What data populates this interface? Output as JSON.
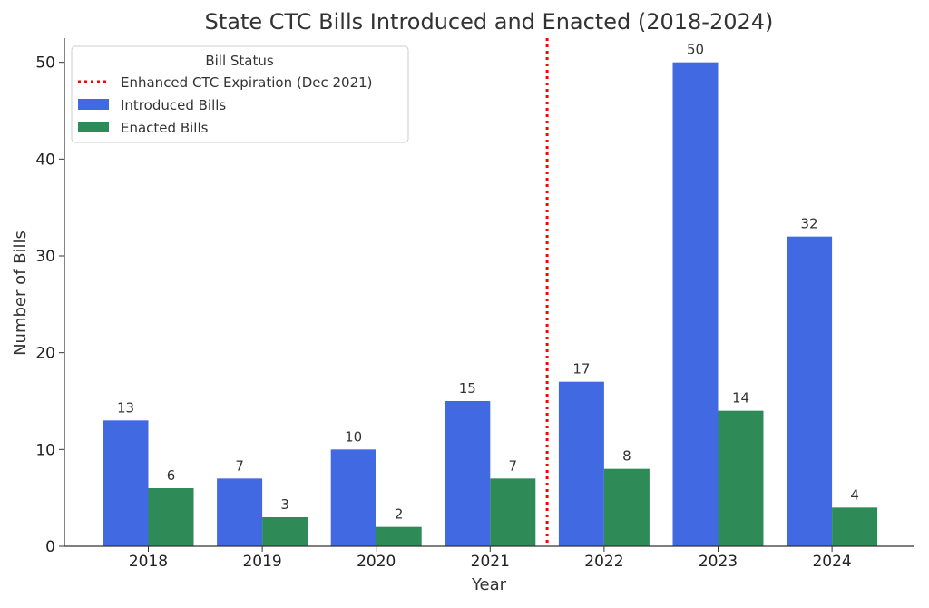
{
  "chart_data": {
    "type": "bar",
    "title": "State CTC Bills Introduced and Enacted (2018-2024)",
    "xlabel": "Year",
    "ylabel": "Number of Bills",
    "categories": [
      "2018",
      "2019",
      "2020",
      "2021",
      "2022",
      "2023",
      "2024"
    ],
    "series": [
      {
        "name": "Introduced Bills",
        "color": "#4169E1",
        "values": [
          13,
          7,
          10,
          15,
          17,
          50,
          32
        ]
      },
      {
        "name": "Enacted Bills",
        "color": "#2E8B57",
        "values": [
          6,
          3,
          2,
          7,
          8,
          14,
          4
        ]
      }
    ],
    "ylim": [
      0,
      52.5
    ],
    "yticks": [
      0,
      10,
      20,
      30,
      40,
      50
    ],
    "reference_line": {
      "label": "Enhanced CTC Expiration (Dec 2021)",
      "position": "between 2021 and 2022",
      "style": "dotted",
      "color": "#FF0000"
    },
    "legend": {
      "title": "Bill Status",
      "placement": "top-left"
    },
    "grid": false
  }
}
